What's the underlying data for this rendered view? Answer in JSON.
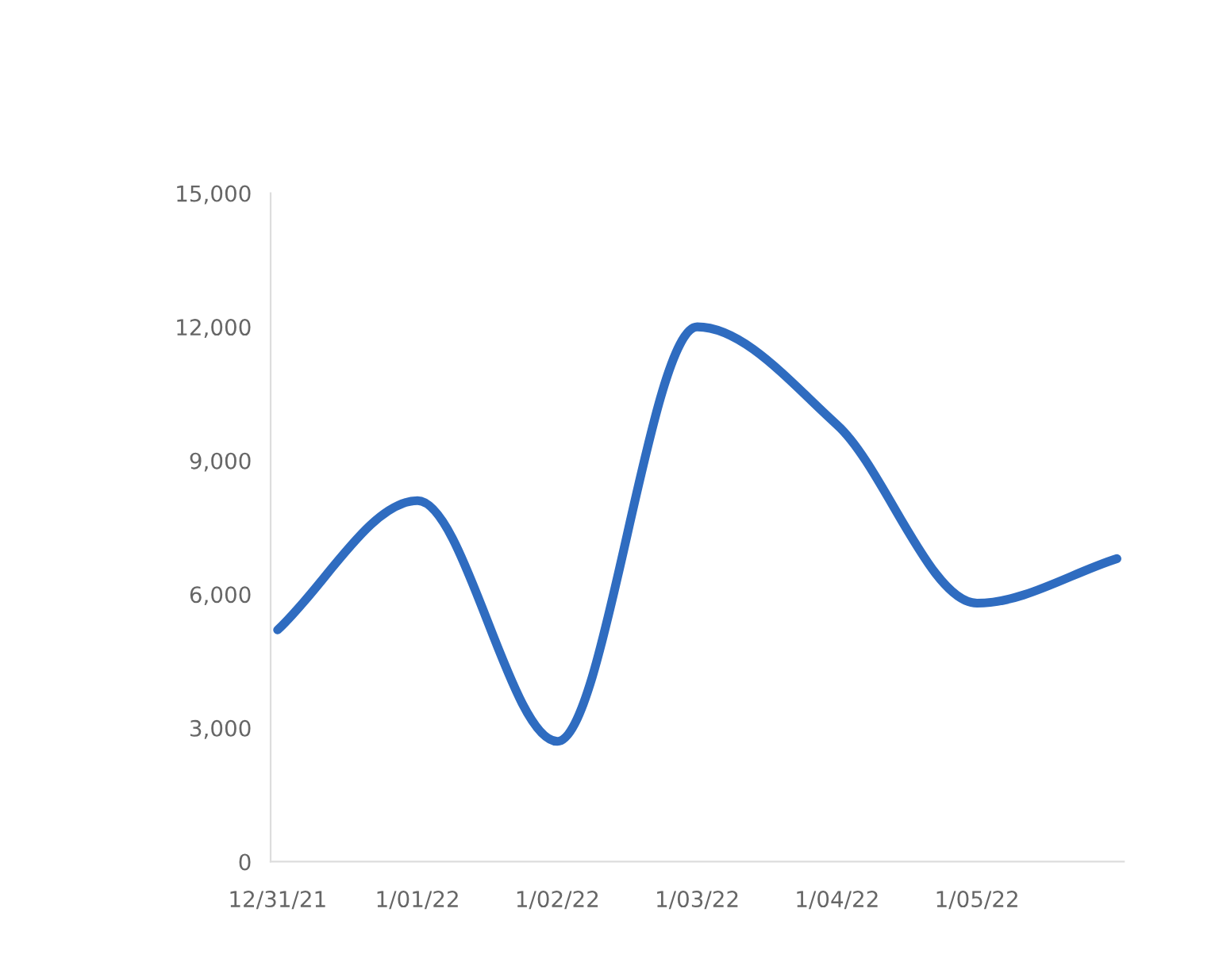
{
  "chart_data": {
    "type": "line",
    "categories": [
      "12/31/21",
      "1/01/22",
      "1/02/22",
      "1/03/22",
      "1/04/22",
      "1/05/22",
      null
    ],
    "series": [
      {
        "color": "#2f6cc0",
        "values": [
          5200,
          8100,
          2700,
          12000,
          9800,
          5800,
          6800
        ]
      }
    ],
    "ylim": [
      0,
      15000
    ],
    "yticks": [
      {
        "value": 0,
        "label": "0"
      },
      {
        "value": 3000,
        "label": "3,000"
      },
      {
        "value": 6000,
        "label": "6,000"
      },
      {
        "value": 9000,
        "label": "9,000"
      },
      {
        "value": 12000,
        "label": "12,000"
      },
      {
        "value": 15000,
        "label": "15,000"
      }
    ],
    "grid": false,
    "marker": "none",
    "line_style": "solid"
  }
}
